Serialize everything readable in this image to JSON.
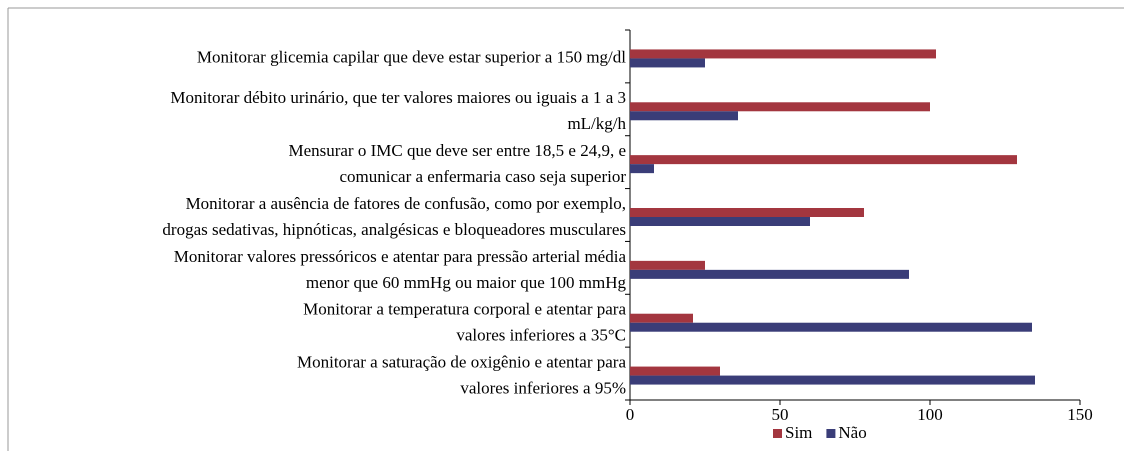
{
  "chart_data": {
    "type": "barh",
    "categories": [
      [
        "Monitorar glicemia capilar que deve estar superior a 150 mg/dl"
      ],
      [
        "Monitorar débito urinário, que ter valores maiores ou iguais a 1 a 3",
        "mL/kg/h"
      ],
      [
        "Mensurar o IMC que deve ser entre 18,5 e 24,9, e",
        "comunicar a enfermaria caso seja superior"
      ],
      [
        "Monitorar a ausência de fatores de confusão, como por exemplo,",
        "drogas sedativas, hipnóticas, analgésicas e bloqueadores musculares"
      ],
      [
        "Monitorar valores pressóricos e atentar para pressão arterial média",
        "menor que 60 mmHg ou maior que 100 mmHg"
      ],
      [
        "Monitorar a temperatura corporal e atentar para",
        "valores inferiores a 35°C"
      ],
      [
        "Monitorar a saturação de oxigênio e atentar para",
        "valores inferiores a 95%"
      ]
    ],
    "series": [
      {
        "name": "Sim",
        "color": "#a3363f",
        "values": [
          102,
          100,
          129,
          78,
          25,
          21,
          30
        ]
      },
      {
        "name": "Não",
        "color": "#3a3d78",
        "values": [
          25,
          36,
          8,
          60,
          93,
          134,
          135
        ]
      }
    ],
    "xlim": [
      0,
      150
    ],
    "xticks": [
      0,
      50,
      100,
      150
    ],
    "legend": "bottom"
  }
}
